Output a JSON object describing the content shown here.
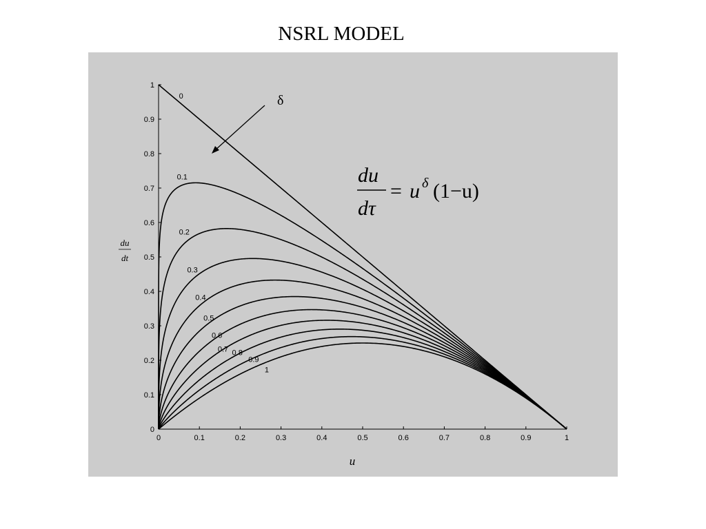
{
  "slide": {
    "title": "NSRL MODEL"
  },
  "equation": {
    "lhs_numerator": "du",
    "lhs_denominator": "dτ",
    "equals": "=",
    "base": "u",
    "exponent": "δ",
    "factor": "(1−u)"
  },
  "annotation": {
    "arrow_label": "δ"
  },
  "chart_data": {
    "type": "line",
    "title": "NSRL MODEL",
    "xlabel": "u",
    "ylabel_numerator": "du",
    "ylabel_denominator": "dt",
    "xlim": [
      0,
      1
    ],
    "ylim": [
      0,
      1
    ],
    "grid": false,
    "legend": "none",
    "function": "du/dτ = u^δ (1 − u)",
    "x_ticks": [
      "0",
      "0.1",
      "0.2",
      "0.3",
      "0.4",
      "0.5",
      "0.6",
      "0.7",
      "0.8",
      "0.9",
      "1"
    ],
    "y_ticks": [
      "0",
      "0.1",
      "0.2",
      "0.3",
      "0.4",
      "0.5",
      "0.6",
      "0.7",
      "0.8",
      "0.9",
      "1"
    ],
    "series": [
      {
        "label": "0",
        "delta": 0,
        "peak": {
          "x": 0,
          "y": 1.0
        }
      },
      {
        "label": "0.1",
        "delta": 0.1,
        "peak": {
          "x": 0.09,
          "y": 0.71
        }
      },
      {
        "label": "0.2",
        "delta": 0.2,
        "peak": {
          "x": 0.17,
          "y": 0.58
        }
      },
      {
        "label": "0.3",
        "delta": 0.3,
        "peak": {
          "x": 0.23,
          "y": 0.5
        }
      },
      {
        "label": "0.4",
        "delta": 0.4,
        "peak": {
          "x": 0.29,
          "y": 0.43
        }
      },
      {
        "label": "0.5",
        "delta": 0.5,
        "peak": {
          "x": 0.33,
          "y": 0.38
        }
      },
      {
        "label": "0.6",
        "delta": 0.6,
        "peak": {
          "x": 0.375,
          "y": 0.345
        }
      },
      {
        "label": "0.7",
        "delta": 0.7,
        "peak": {
          "x": 0.41,
          "y": 0.31
        }
      },
      {
        "label": "0.8",
        "delta": 0.8,
        "peak": {
          "x": 0.44,
          "y": 0.29
        }
      },
      {
        "label": "0.9",
        "delta": 0.9,
        "peak": {
          "x": 0.47,
          "y": 0.27
        }
      },
      {
        "label": "1",
        "delta": 1.0,
        "peak": {
          "x": 0.5,
          "y": 0.25
        }
      }
    ]
  }
}
